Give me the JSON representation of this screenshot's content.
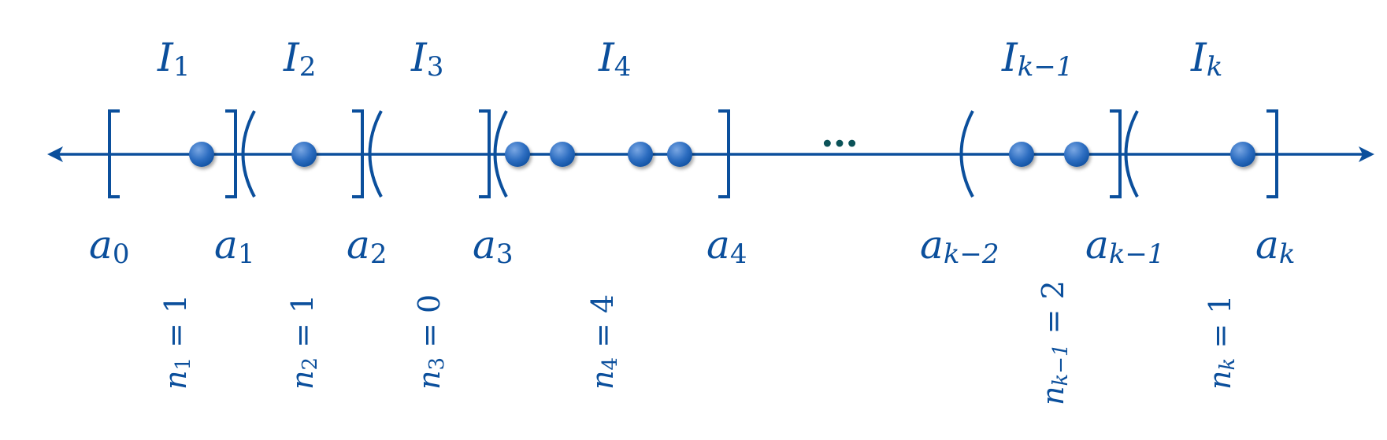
{
  "colors": {
    "line": "#0b4f9c",
    "point_light": "#5b8fd6",
    "point_dark": "#0e4f9f",
    "dots": "#0b5258"
  },
  "interval_labels": [
    {
      "base": "I",
      "sub": "1"
    },
    {
      "base": "I",
      "sub": "2"
    },
    {
      "base": "I",
      "sub": "3"
    },
    {
      "base": "I",
      "sub": "4"
    },
    {
      "base": "I",
      "sub": "k−1"
    },
    {
      "base": "I",
      "sub": "k"
    }
  ],
  "endpoint_labels": [
    {
      "base": "a",
      "sub": "0"
    },
    {
      "base": "a",
      "sub": "1"
    },
    {
      "base": "a",
      "sub": "2"
    },
    {
      "base": "a",
      "sub": "3"
    },
    {
      "base": "a",
      "sub": "4"
    },
    {
      "base": "a",
      "sub": "k−2"
    },
    {
      "base": "a",
      "sub": "k−1"
    },
    {
      "base": "a",
      "sub": "k"
    }
  ],
  "count_labels": [
    {
      "base": "n",
      "sub": "1",
      "rel": " = 1"
    },
    {
      "base": "n",
      "sub": "2",
      "rel": " = 1"
    },
    {
      "base": "n",
      "sub": "3",
      "rel": " = 0"
    },
    {
      "base": "n",
      "sub": "4",
      "rel": " = 4"
    },
    {
      "base": "n",
      "sub": "k−1",
      "rel": " = 2"
    },
    {
      "base": "n",
      "sub": "k",
      "rel": " = 1"
    }
  ],
  "ellipsis": "…",
  "bracket_types": [
    "closed-left",
    "closed-right",
    "open-left",
    "closed-right",
    "open-left",
    "closed-right",
    "open-left",
    "closed-right",
    "open-left",
    "closed-right",
    "open-left",
    "closed-right"
  ],
  "points_per_interval": [
    1,
    1,
    0,
    4,
    2,
    1
  ]
}
